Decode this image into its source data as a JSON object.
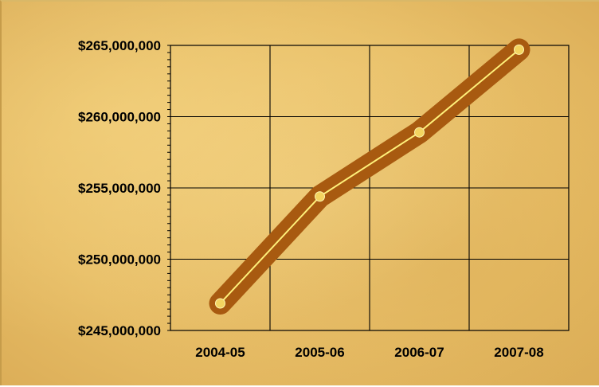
{
  "chart_data": {
    "type": "line",
    "categories": [
      "2004-05",
      "2005-06",
      "2006-07",
      "2007-08"
    ],
    "series": [
      {
        "values": [
          246900000,
          254400000,
          258900000,
          264700000
        ]
      }
    ],
    "ylim": [
      245000000,
      265000000
    ],
    "yticks": [
      245000000,
      250000000,
      255000000,
      260000000,
      265000000
    ],
    "ytick_labels": [
      "$245,000,000",
      "$250,000,000",
      "$255,000,000",
      "$260,000,000",
      "$265,000,000"
    ],
    "grid": true,
    "colors": {
      "halo": "#a85a10",
      "line": "#fff07a",
      "marker": "#f3d460",
      "grid": "#000000"
    }
  }
}
